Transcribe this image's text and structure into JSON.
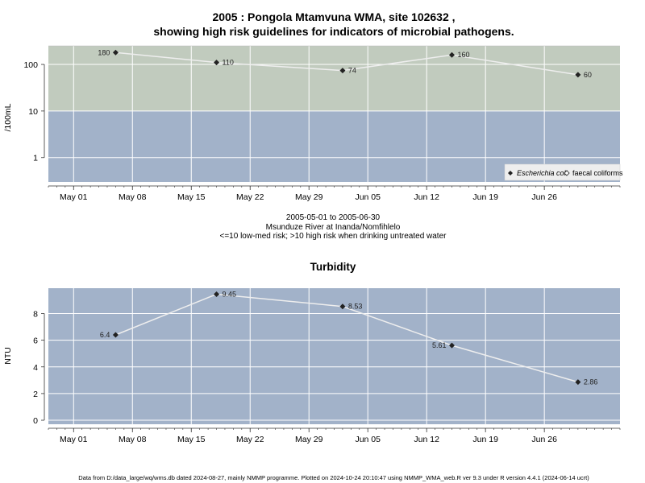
{
  "chart_data": [
    {
      "type": "line",
      "title": "2005 : Pongola Mtamvuna WMA, site 102632 ,",
      "subtitle": "showing high risk guidelines for indicators of microbial pathogens.",
      "ylabel": "/100mL",
      "yscale": "log",
      "ylim": [
        0.3,
        250
      ],
      "yticks": [
        1,
        10,
        100
      ],
      "ytick_labels": [
        "1",
        "10",
        "100"
      ],
      "xlim": [
        "2005-04-28",
        "2005-07-05"
      ],
      "xticks": [
        "2005-05-01",
        "2005-05-08",
        "2005-05-15",
        "2005-05-22",
        "2005-05-29",
        "2005-06-05",
        "2005-06-12",
        "2005-06-19",
        "2005-06-26"
      ],
      "xtick_labels": [
        "May 01",
        "May 08",
        "May 15",
        "May 22",
        "May 29",
        "Jun 05",
        "Jun 12",
        "Jun 19",
        "Jun 26"
      ],
      "threshold": 10,
      "band_colors": {
        "low": "#a2b2c9",
        "high": "#c1cbbe"
      },
      "grid": true,
      "legend_position": "bottom-right",
      "series": [
        {
          "name": "Escherichia coli",
          "marker": "filled-diamond",
          "x": [
            "2005-05-06",
            "2005-05-18",
            "2005-06-02",
            "2005-06-15",
            "2005-06-30"
          ],
          "values": [
            180,
            110,
            74,
            160,
            60
          ],
          "labels": [
            "180",
            "110",
            "74",
            "160",
            "60"
          ]
        },
        {
          "name": "faecal coliforms",
          "marker": "open-diamond",
          "x": [],
          "values": []
        }
      ],
      "caption": [
        "2005-05-01 to 2005-06-30",
        "Msunduze River at Inanda/Nomfihlelo",
        "<=10 low-med risk; >10 high risk when drinking untreated water"
      ]
    },
    {
      "type": "line",
      "title": "Turbidity",
      "ylabel": "NTU",
      "ylim": [
        -0.3,
        9.9
      ],
      "yticks": [
        0,
        2,
        4,
        6,
        8
      ],
      "ytick_labels": [
        "0",
        "2",
        "4",
        "6",
        "8"
      ],
      "xlim": [
        "2005-04-28",
        "2005-07-05"
      ],
      "xticks": [
        "2005-05-01",
        "2005-05-08",
        "2005-05-15",
        "2005-05-22",
        "2005-05-29",
        "2005-06-05",
        "2005-06-12",
        "2005-06-19",
        "2005-06-26"
      ],
      "xtick_labels": [
        "May 01",
        "May 08",
        "May 15",
        "May 22",
        "May 29",
        "Jun 05",
        "Jun 12",
        "Jun 19",
        "Jun 26"
      ],
      "background": "#a2b2c9",
      "grid": true,
      "series": [
        {
          "marker": "filled-diamond",
          "x": [
            "2005-05-06",
            "2005-05-18",
            "2005-06-02",
            "2005-06-15",
            "2005-06-30"
          ],
          "values": [
            6.4,
            9.45,
            8.53,
            5.61,
            2.86
          ],
          "labels": [
            "6.4",
            "9.45",
            "8.53",
            "5.61",
            "2.86"
          ]
        }
      ]
    }
  ],
  "footer": "Data from D:/data_large/wq/wms.db dated 2024-08-27, mainly NMMP programme. Plotted on 2024-10-24 20:10:47 using NMMP_WMA_web.R ver 9.3 under R version 4.4.1 (2024-06-14 ucrt)"
}
